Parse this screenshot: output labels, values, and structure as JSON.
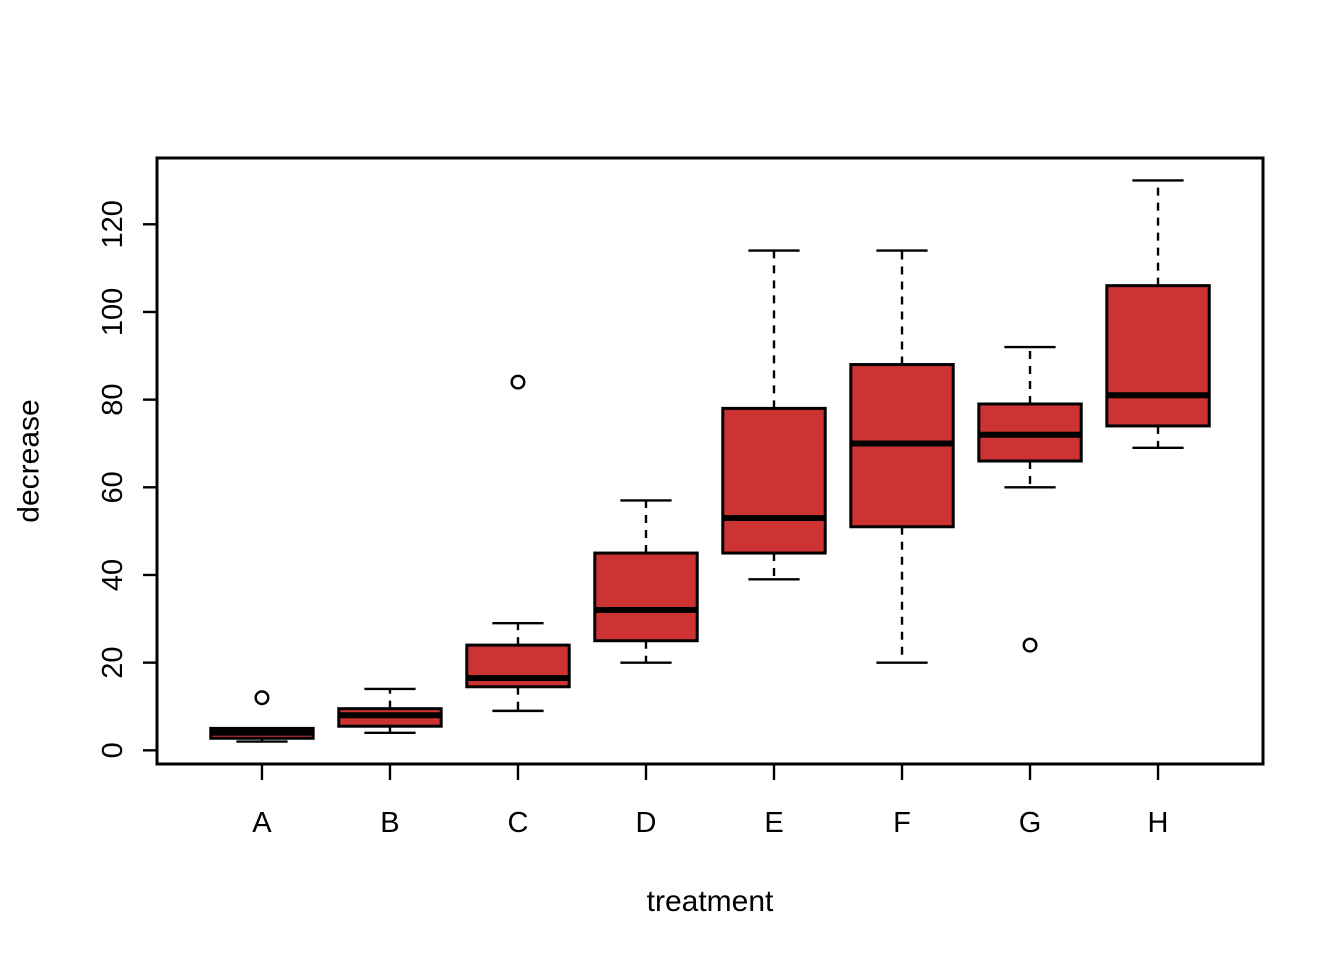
{
  "figure": {
    "background": "#FFFFFF",
    "border_color": "#000000"
  },
  "chart_data": {
    "type": "boxplot",
    "title": "",
    "xlabel": "treatment",
    "ylabel": "decrease",
    "categories": [
      "A",
      "B",
      "C",
      "D",
      "E",
      "F",
      "G",
      "H"
    ],
    "y_ticks": [
      0,
      20,
      40,
      60,
      80,
      100,
      120
    ],
    "ylim": [
      -3.12,
      135.12
    ],
    "xlim": [
      0.18,
      8.82
    ],
    "grid": false,
    "legend": "none",
    "series": [
      {
        "name": "A",
        "whisker_low": 2,
        "q1": 2.75,
        "median": 4,
        "q3": 5,
        "whisker_high": 5,
        "outliers": [
          12
        ]
      },
      {
        "name": "B",
        "whisker_low": 4,
        "q1": 5.5,
        "median": 8,
        "q3": 9.5,
        "whisker_high": 14,
        "outliers": []
      },
      {
        "name": "C",
        "whisker_low": 9,
        "q1": 14.5,
        "median": 16.5,
        "q3": 24,
        "whisker_high": 29,
        "outliers": [
          84
        ]
      },
      {
        "name": "D",
        "whisker_low": 20,
        "q1": 25,
        "median": 32,
        "q3": 45,
        "whisker_high": 57,
        "outliers": []
      },
      {
        "name": "E",
        "whisker_low": 39,
        "q1": 45,
        "median": 53,
        "q3": 78,
        "whisker_high": 114,
        "outliers": []
      },
      {
        "name": "F",
        "whisker_low": 20,
        "q1": 51,
        "median": 70,
        "q3": 88,
        "whisker_high": 114,
        "outliers": []
      },
      {
        "name": "G",
        "whisker_low": 60,
        "q1": 66,
        "median": 72,
        "q3": 79,
        "whisker_high": 92,
        "outliers": [
          24
        ]
      },
      {
        "name": "H",
        "whisker_low": 69,
        "q1": 74,
        "median": 81,
        "q3": 106,
        "whisker_high": 130,
        "outliers": []
      }
    ],
    "style": {
      "box_fill": "#CD3333",
      "stroke": "#000000",
      "outlier_fill": "#FFFFFF",
      "box_width_frac": 0.8,
      "staple_width_frac": 0.4,
      "whisker_dash": "8 7"
    }
  }
}
